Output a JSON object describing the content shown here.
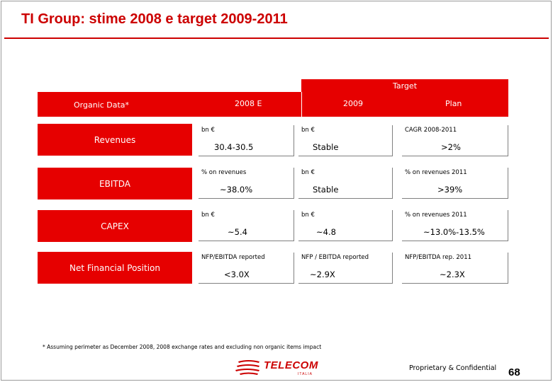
{
  "title": "TI Group: stime 2008 e target 2009-2011",
  "header": {
    "target": "Target",
    "organic": "Organic Data*",
    "col_2008": "2008 E",
    "col_2009": "2009",
    "col_plan": "Plan"
  },
  "rows": [
    {
      "label": "Revenues",
      "c2008": {
        "unit": "bn €",
        "value": "30.4-30.5"
      },
      "c2009": {
        "unit": "bn €",
        "value": "Stable"
      },
      "cplan": {
        "unit": "CAGR 2008-2011",
        "value": ">2%"
      }
    },
    {
      "label": "EBITDA",
      "c2008": {
        "unit": "% on revenues",
        "value": "~38.0%"
      },
      "c2009": {
        "unit": "bn €",
        "value": "Stable"
      },
      "cplan": {
        "unit": "% on revenues 2011",
        "value": ">39%"
      }
    },
    {
      "label": "CAPEX",
      "c2008": {
        "unit": "bn €",
        "value": "~5.4"
      },
      "c2009": {
        "unit": "bn €",
        "value": "~4.8"
      },
      "cplan": {
        "unit": "% on revenues 2011",
        "value": "~13.0%-13.5%"
      }
    },
    {
      "label": "Net Financial Position",
      "c2008": {
        "unit": "NFP/EBITDA reported",
        "value": "<3.0X"
      },
      "c2009": {
        "unit": "NFP / EBITDA reported",
        "value": "~2.9X"
      },
      "cplan": {
        "unit": "NFP/EBITDA rep. 2011",
        "value": "~2.3X"
      }
    }
  ],
  "footnote": "* Assuming perimeter as December 2008, 2008 exchange rates and excluding non organic items impact",
  "logo": {
    "text": "TELECOM",
    "sub": "ITALIA"
  },
  "confidential": "Proprietary & Confidential",
  "page_number": "68",
  "colors": {
    "brand_red": "#e60000",
    "title_red": "#cc0000"
  }
}
